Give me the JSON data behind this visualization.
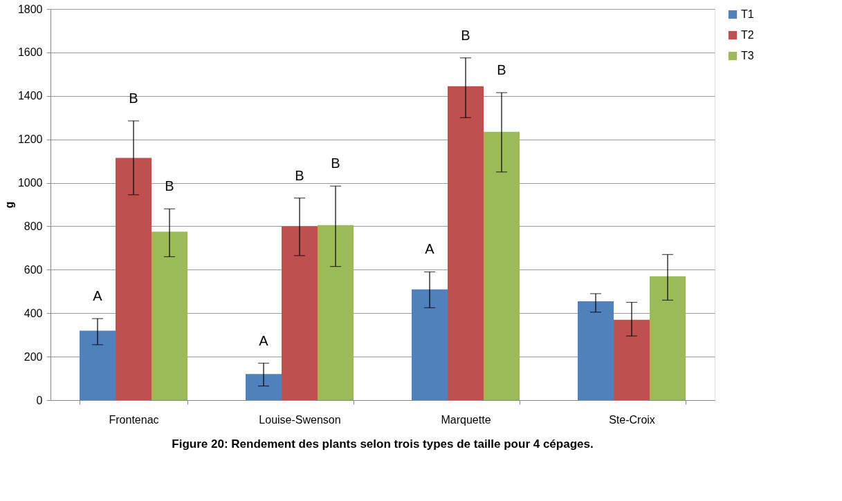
{
  "chart_data": {
    "type": "bar",
    "title": "Figure 20: Rendement des plants selon trois types de taille pour 4 cépages.",
    "ylabel": "g",
    "categories": [
      "Frontenac",
      "Louise-Swenson",
      "Marquette",
      "Ste-Croix"
    ],
    "series": [
      {
        "name": "T1",
        "color": "#4f81bd",
        "values": [
          320,
          120,
          510,
          455
        ],
        "errors": [
          [
            255,
            375
          ],
          [
            65,
            170
          ],
          [
            425,
            590
          ],
          [
            405,
            490
          ]
        ]
      },
      {
        "name": "T2",
        "color": "#c0504d",
        "values": [
          1115,
          800,
          1445,
          370
        ],
        "errors": [
          [
            945,
            1285
          ],
          [
            665,
            930
          ],
          [
            1300,
            1575
          ],
          [
            295,
            450
          ]
        ]
      },
      {
        "name": "T3",
        "color": "#9bbb59",
        "values": [
          775,
          805,
          1235,
          570
        ],
        "errors": [
          [
            660,
            880
          ],
          [
            615,
            985
          ],
          [
            1050,
            1415
          ],
          [
            460,
            670
          ]
        ]
      }
    ],
    "ylim": [
      0,
      1800
    ],
    "yticks": [
      0,
      200,
      400,
      600,
      800,
      1000,
      1200,
      1400,
      1600,
      1800
    ],
    "grid": "y",
    "legend": "right",
    "annotations": [
      "A",
      "B",
      "B",
      "A",
      "B",
      "B",
      "A",
      "B",
      "B"
    ]
  }
}
